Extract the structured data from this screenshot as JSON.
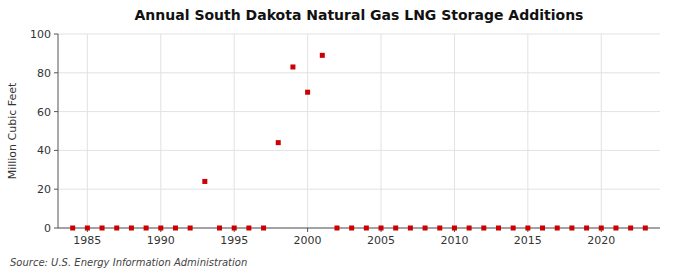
{
  "chart_data": {
    "type": "scatter",
    "title": "Annual South Dakota Natural Gas LNG Storage Additions",
    "ylabel": "Million Cubic Feet",
    "source": "Source: U.S. Energy Information Administration",
    "x": [
      1984,
      1985,
      1986,
      1987,
      1988,
      1989,
      1990,
      1991,
      1992,
      1993,
      1994,
      1995,
      1996,
      1997,
      1998,
      1999,
      2000,
      2001,
      2002,
      2003,
      2004,
      2005,
      2006,
      2007,
      2008,
      2009,
      2010,
      2011,
      2012,
      2013,
      2014,
      2015,
      2016,
      2017,
      2018,
      2019,
      2020,
      2021,
      2022,
      2023
    ],
    "values": [
      0,
      0,
      0,
      0,
      0,
      0,
      0,
      0,
      0,
      24,
      0,
      0,
      0,
      0,
      44,
      83,
      70,
      89,
      0,
      0,
      0,
      0,
      0,
      0,
      0,
      0,
      0,
      0,
      0,
      0,
      0,
      0,
      0,
      0,
      0,
      0,
      0,
      0,
      0,
      0
    ],
    "color": "#cc0000",
    "marker": "square",
    "xlim": [
      1983,
      2024
    ],
    "ylim": [
      0,
      100
    ],
    "xticks": [
      1985,
      1990,
      1995,
      2000,
      2005,
      2010,
      2015,
      2020
    ],
    "yticks": [
      0,
      20,
      40,
      60,
      80,
      100
    ],
    "grid": true
  }
}
